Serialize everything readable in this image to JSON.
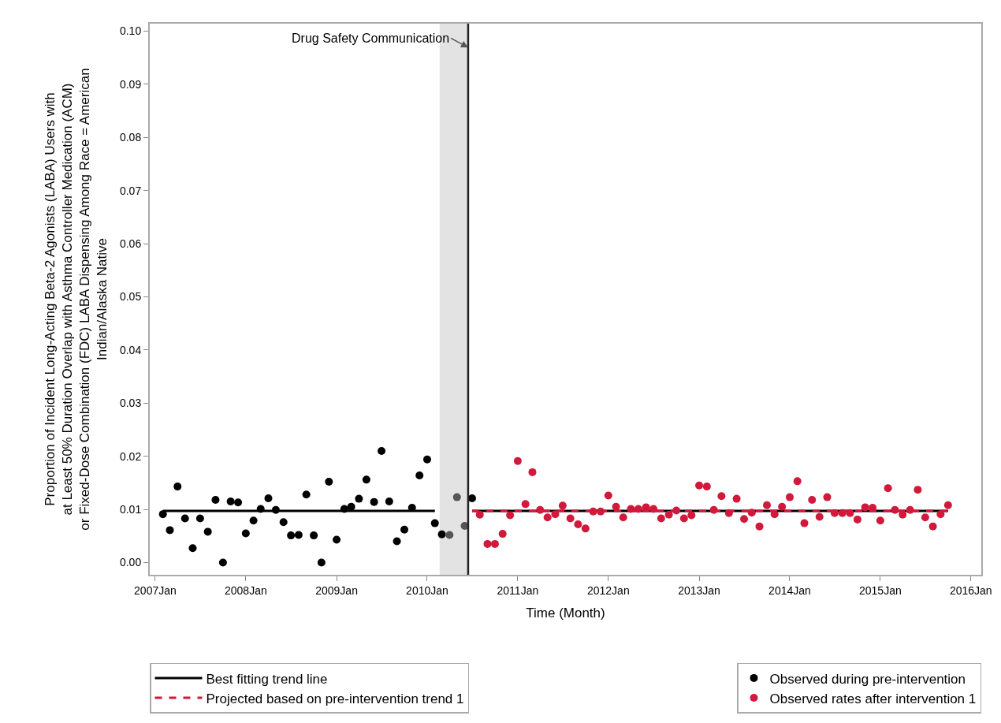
{
  "chart_data": {
    "type": "scatter",
    "xlabel": "Time (Month)",
    "ylabel": "Proportion of Incident Long-Acting Beta-2 Agonists (LABA) Users with at Least 50% Duration Overlap with Asthma Controller Medication (ACM) or Fixed-Dose Combination (FDC) LABA Dispensing Among Race = American Indian/Alaska Native",
    "xlim": [
      "2006-12-10",
      "2016-02-12"
    ],
    "ylim": [
      -0.0023,
      0.1014
    ],
    "xticks": [
      {
        "value": "2007-01",
        "label": "2007Jan"
      },
      {
        "value": "2008-01",
        "label": "2008Jan"
      },
      {
        "value": "2009-01",
        "label": "2009Jan"
      },
      {
        "value": "2010-01",
        "label": "2010Jan"
      },
      {
        "value": "2011-01",
        "label": "2011Jan"
      },
      {
        "value": "2012-01",
        "label": "2012Jan"
      },
      {
        "value": "2013-01",
        "label": "2013Jan"
      },
      {
        "value": "2014-01",
        "label": "2014Jan"
      },
      {
        "value": "2015-01",
        "label": "2015Jan"
      },
      {
        "value": "2016-01",
        "label": "2016Jan"
      }
    ],
    "yticks": [
      {
        "value": 0,
        "label": "0.00"
      },
      {
        "value": 0.01,
        "label": "0.01"
      },
      {
        "value": 0.02,
        "label": "0.02"
      },
      {
        "value": 0.03,
        "label": "0.03"
      },
      {
        "value": 0.04,
        "label": "0.04"
      },
      {
        "value": 0.05,
        "label": "0.05"
      },
      {
        "value": 0.06,
        "label": "0.06"
      },
      {
        "value": 0.07,
        "label": "0.07"
      },
      {
        "value": 0.08,
        "label": "0.08"
      },
      {
        "value": 0.09,
        "label": "0.09"
      },
      {
        "value": 0.1,
        "label": "0.10"
      }
    ],
    "grid": false,
    "legend": "bottom",
    "ref_lines": [
      {
        "axis": "x",
        "value": "2010-06-15",
        "label": null,
        "color": "#222222"
      }
    ],
    "bands": [
      {
        "axis": "x",
        "from": "2010-02-20",
        "to": "2010-06-15",
        "label": null,
        "color": "#e3e3e3"
      }
    ],
    "annotations": [
      {
        "text": "Drug Safety Communication",
        "x": "2010-06-15",
        "y": 0.0969
      }
    ],
    "series": [
      {
        "name": "Best fitting trend line",
        "type": "line",
        "color": "#000000",
        "line_style": "solid",
        "marker": "none",
        "x": [
          "2007-02",
          "2010-02",
          "2010-04",
          "2010-07",
          "2015-10"
        ],
        "values": [
          0.0097,
          0.0097,
          null,
          0.0097,
          0.0097
        ]
      },
      {
        "name": "Projected based on pre-intervention trend 1",
        "type": "line",
        "color": "#d0193b",
        "line_style": "dashed",
        "marker": "none",
        "x": [
          "2010-07",
          "2015-10"
        ],
        "values": [
          0.0097,
          0.0097
        ]
      },
      {
        "name": "Observed during pre-intervention",
        "marker": "circle",
        "color": "#000000",
        "x": [
          "2007-02",
          "2007-03",
          "2007-04",
          "2007-05",
          "2007-06",
          "2007-07",
          "2007-08",
          "2007-09",
          "2007-10",
          "2007-11",
          "2007-12",
          "2008-01",
          "2008-02",
          "2008-03",
          "2008-04",
          "2008-05",
          "2008-06",
          "2008-07",
          "2008-08",
          "2008-09",
          "2008-10",
          "2008-11",
          "2008-12",
          "2009-01",
          "2009-02",
          "2009-03",
          "2009-04",
          "2009-05",
          "2009-06",
          "2009-07",
          "2009-08",
          "2009-09",
          "2009-10",
          "2009-11",
          "2009-12",
          "2010-01",
          "2010-02",
          "2010-03",
          "2010-07"
        ],
        "values": [
          0.0091,
          0.0061,
          0.0143,
          0.0083,
          0.0027,
          0.0083,
          0.0058,
          0.0118,
          0.0,
          0.0115,
          0.0113,
          0.0055,
          0.0079,
          0.0101,
          0.0121,
          0.0099,
          0.0076,
          0.0051,
          0.0052,
          0.0128,
          0.0051,
          0.0,
          0.0152,
          0.0043,
          0.0101,
          0.0105,
          0.012,
          0.0156,
          0.0114,
          0.021,
          0.0115,
          0.004,
          0.0062,
          0.0103,
          0.0164,
          0.0194,
          0.0074,
          0.0053,
          0.0121
        ]
      },
      {
        "marker": "circle",
        "color": "#555555",
        "x": [
          "2010-04",
          "2010-05",
          "2010-06"
        ],
        "values": [
          0.0052,
          0.0123,
          0.0069
        ]
      },
      {
        "name": "Observed rates after intervention 1",
        "marker": "circle",
        "color": "#d0193b",
        "x": [
          "2010-08",
          "2010-09",
          "2010-10",
          "2010-11",
          "2010-12",
          "2011-01",
          "2011-02",
          "2011-03",
          "2011-04",
          "2011-05",
          "2011-06",
          "2011-07",
          "2011-08",
          "2011-09",
          "2011-10",
          "2011-11",
          "2011-12",
          "2012-01",
          "2012-02",
          "2012-03",
          "2012-04",
          "2012-05",
          "2012-06",
          "2012-07",
          "2012-08",
          "2012-09",
          "2012-10",
          "2012-11",
          "2012-12",
          "2013-01",
          "2013-02",
          "2013-03",
          "2013-04",
          "2013-05",
          "2013-06",
          "2013-07",
          "2013-08",
          "2013-09",
          "2013-10",
          "2013-11",
          "2013-12",
          "2014-01",
          "2014-02",
          "2014-03",
          "2014-04",
          "2014-05",
          "2014-06",
          "2014-07",
          "2014-08",
          "2014-09",
          "2014-10",
          "2014-11",
          "2014-12",
          "2015-01",
          "2015-02",
          "2015-03",
          "2015-04",
          "2015-05",
          "2015-06",
          "2015-07",
          "2015-08",
          "2015-09",
          "2015-10"
        ],
        "values": [
          0.009,
          0.0035,
          0.0035,
          0.0054,
          0.0089,
          0.0191,
          0.011,
          0.017,
          0.0099,
          0.0085,
          0.0091,
          0.0107,
          0.0083,
          0.0072,
          0.0064,
          0.0096,
          0.0096,
          0.0126,
          0.0105,
          0.0085,
          0.0101,
          0.0101,
          0.0104,
          0.0101,
          0.0083,
          0.009,
          0.0098,
          0.0083,
          0.0089,
          0.0145,
          0.0143,
          0.0099,
          0.0125,
          0.0093,
          0.012,
          0.0082,
          0.0094,
          0.0068,
          0.0108,
          0.0091,
          0.0105,
          0.0123,
          0.0153,
          0.0074,
          0.0118,
          0.0086,
          0.0123,
          0.0093,
          0.0093,
          0.0093,
          0.0081,
          0.0104,
          0.0103,
          0.0079,
          0.014,
          0.0099,
          0.009,
          0.0099,
          0.0137,
          0.0085,
          0.0068,
          0.0091,
          0.0108
        ]
      }
    ]
  }
}
